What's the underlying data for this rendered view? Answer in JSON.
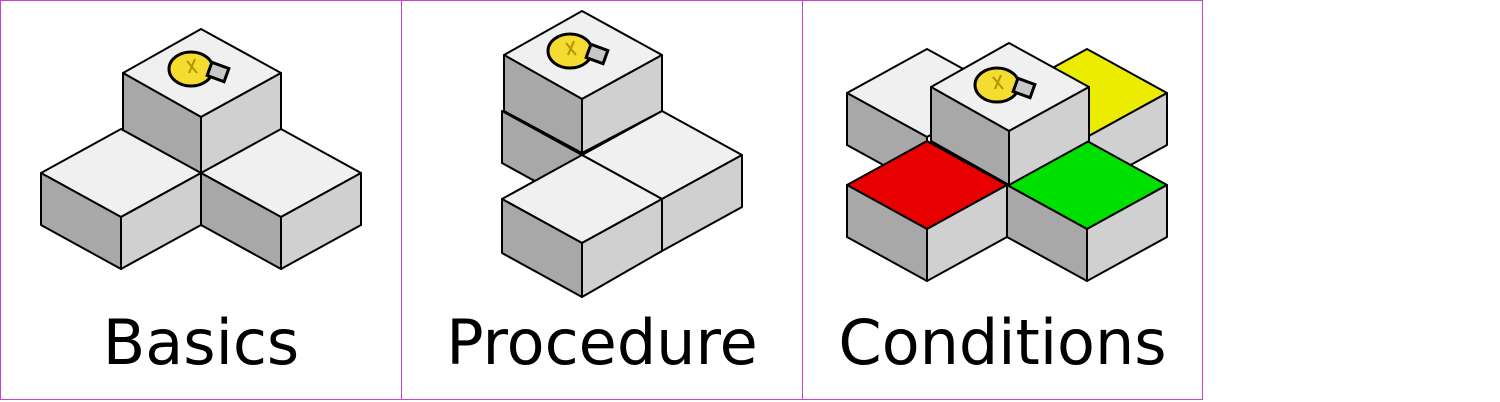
{
  "levels": [
    {
      "label": "Basics",
      "icon": "lightbulb-icon",
      "tile_colors": [
        "#f0f0f0",
        "#f0f0f0",
        "#f0f0f0"
      ]
    },
    {
      "label": "Procedure",
      "icon": "lightbulb-icon",
      "tile_colors": [
        "#f0f0f0",
        "#f0f0f0",
        "#f0f0f0"
      ]
    },
    {
      "label": "Conditions",
      "icon": "lightbulb-icon",
      "tile_colors": [
        "#f0f0f0",
        "#f0f0f0",
        "#ecec00",
        "#e80000",
        "#00e000"
      ]
    }
  ],
  "colors": {
    "border": "#d040d0",
    "tile_top": "#f0f0f0",
    "tile_left": "#a8a8a8",
    "tile_right": "#d0d0d0",
    "bulb": "#f5dc30",
    "red_tile": "#e80000",
    "green_tile": "#00e000",
    "yellow_tile": "#ecec00"
  }
}
